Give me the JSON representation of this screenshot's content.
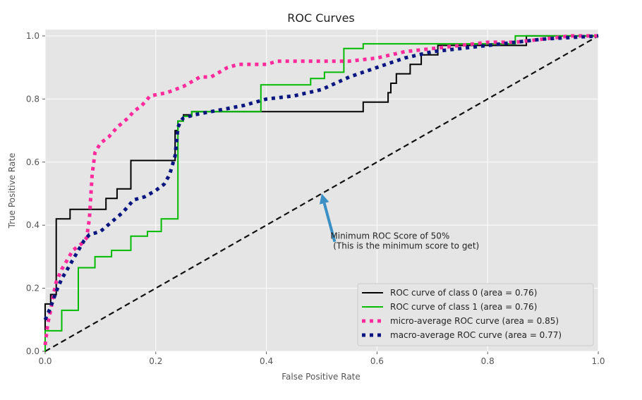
{
  "chart_data": {
    "type": "line",
    "title": "ROC Curves",
    "xlabel": "False Positive Rate",
    "ylabel": "True Positive Rate",
    "xlim": [
      0,
      1
    ],
    "ylim": [
      0,
      1.02
    ],
    "xticks": [
      "0.0",
      "0.2",
      "0.4",
      "0.6",
      "0.8",
      "1.0"
    ],
    "yticks": [
      "0.0",
      "0.2",
      "0.4",
      "0.6",
      "0.8",
      "1.0"
    ],
    "grid": true,
    "legend_position": "lower-right",
    "background_color": "#e5e5e5",
    "series": [
      {
        "name": "ROC curve of class 0 (area = 0.76)",
        "color": "#000000",
        "style": "solid",
        "x": [
          0,
          0,
          0.01,
          0.01,
          0.02,
          0.02,
          0.045,
          0.045,
          0.11,
          0.11,
          0.13,
          0.13,
          0.155,
          0.155,
          0.235,
          0.235,
          0.24,
          0.24,
          0.25,
          0.25,
          0.265,
          0.265,
          0.575,
          0.575,
          0.62,
          0.62,
          0.625,
          0.625,
          0.635,
          0.635,
          0.66,
          0.66,
          0.68,
          0.68,
          0.71,
          0.71,
          0.87,
          0.87,
          0.935,
          0.935,
          1.0
        ],
        "y": [
          0,
          0.15,
          0.15,
          0.18,
          0.18,
          0.42,
          0.42,
          0.45,
          0.45,
          0.485,
          0.485,
          0.515,
          0.515,
          0.605,
          0.605,
          0.7,
          0.7,
          0.73,
          0.73,
          0.75,
          0.75,
          0.76,
          0.76,
          0.79,
          0.79,
          0.82,
          0.82,
          0.85,
          0.85,
          0.88,
          0.88,
          0.91,
          0.91,
          0.94,
          0.94,
          0.97,
          0.97,
          1.0,
          1.0,
          1.0,
          1.0
        ]
      },
      {
        "name": "ROC curve of class 1 (area = 0.76)",
        "color": "#00bb00",
        "style": "solid",
        "x": [
          0,
          0,
          0.03,
          0.03,
          0.06,
          0.06,
          0.09,
          0.09,
          0.12,
          0.12,
          0.155,
          0.155,
          0.185,
          0.185,
          0.21,
          0.21,
          0.24,
          0.24,
          0.25,
          0.25,
          0.265,
          0.265,
          0.39,
          0.39,
          0.48,
          0.48,
          0.505,
          0.505,
          0.54,
          0.54,
          0.55,
          0.55,
          0.575,
          0.575,
          0.85,
          0.85,
          1.0
        ],
        "y": [
          0,
          0.065,
          0.065,
          0.13,
          0.13,
          0.265,
          0.265,
          0.3,
          0.3,
          0.32,
          0.32,
          0.365,
          0.365,
          0.38,
          0.38,
          0.42,
          0.42,
          0.73,
          0.73,
          0.745,
          0.745,
          0.76,
          0.76,
          0.845,
          0.845,
          0.865,
          0.865,
          0.885,
          0.885,
          0.96,
          0.96,
          0.96,
          0.96,
          0.975,
          0.975,
          1.0,
          1.0
        ]
      },
      {
        "name": "micro-average ROC curve (area = 0.85)",
        "color": "#ff2a9c",
        "style": "dotted",
        "x": [
          0,
          0.005,
          0.01,
          0.015,
          0.02,
          0.03,
          0.04,
          0.05,
          0.065,
          0.075,
          0.08,
          0.085,
          0.09,
          0.1,
          0.115,
          0.13,
          0.15,
          0.16,
          0.175,
          0.19,
          0.22,
          0.25,
          0.28,
          0.3,
          0.33,
          0.35,
          0.4,
          0.42,
          0.45,
          0.55,
          0.6,
          0.65,
          0.7,
          0.75,
          0.8,
          0.85,
          0.9,
          0.95,
          1.0
        ],
        "y": [
          0.02,
          0.09,
          0.13,
          0.18,
          0.22,
          0.26,
          0.29,
          0.32,
          0.34,
          0.36,
          0.42,
          0.56,
          0.63,
          0.66,
          0.68,
          0.71,
          0.74,
          0.76,
          0.78,
          0.81,
          0.82,
          0.84,
          0.87,
          0.87,
          0.9,
          0.91,
          0.91,
          0.92,
          0.92,
          0.92,
          0.93,
          0.95,
          0.96,
          0.97,
          0.98,
          0.98,
          0.99,
          1.0,
          1.0
        ]
      },
      {
        "name": "macro-average ROC curve (area = 0.77)",
        "color": "#0a1680",
        "style": "dotted",
        "x": [
          0,
          0.01,
          0.02,
          0.03,
          0.04,
          0.05,
          0.06,
          0.07,
          0.08,
          0.1,
          0.12,
          0.14,
          0.15,
          0.16,
          0.18,
          0.2,
          0.215,
          0.225,
          0.235,
          0.24,
          0.245,
          0.25,
          0.27,
          0.3,
          0.33,
          0.36,
          0.4,
          0.45,
          0.5,
          0.55,
          0.6,
          0.65,
          0.7,
          0.8,
          0.9,
          1.0
        ],
        "y": [
          0.1,
          0.14,
          0.19,
          0.23,
          0.26,
          0.29,
          0.32,
          0.35,
          0.37,
          0.38,
          0.41,
          0.44,
          0.46,
          0.48,
          0.49,
          0.51,
          0.53,
          0.56,
          0.62,
          0.71,
          0.73,
          0.74,
          0.75,
          0.76,
          0.77,
          0.78,
          0.8,
          0.81,
          0.83,
          0.87,
          0.9,
          0.93,
          0.95,
          0.97,
          0.99,
          1.0
        ]
      },
      {
        "name": "",
        "color": "#111111",
        "style": "dashed",
        "x": [
          0,
          1
        ],
        "y": [
          0,
          1
        ]
      }
    ],
    "annotation": {
      "text_line1": "Minimum ROC Score of 50%",
      "text_line2": " (This is the minimum score to get)",
      "arrow_color": "#3a8fc4",
      "arrow_target": [
        0.5,
        0.5
      ],
      "text_anchor": [
        0.6,
        0.37
      ]
    }
  }
}
